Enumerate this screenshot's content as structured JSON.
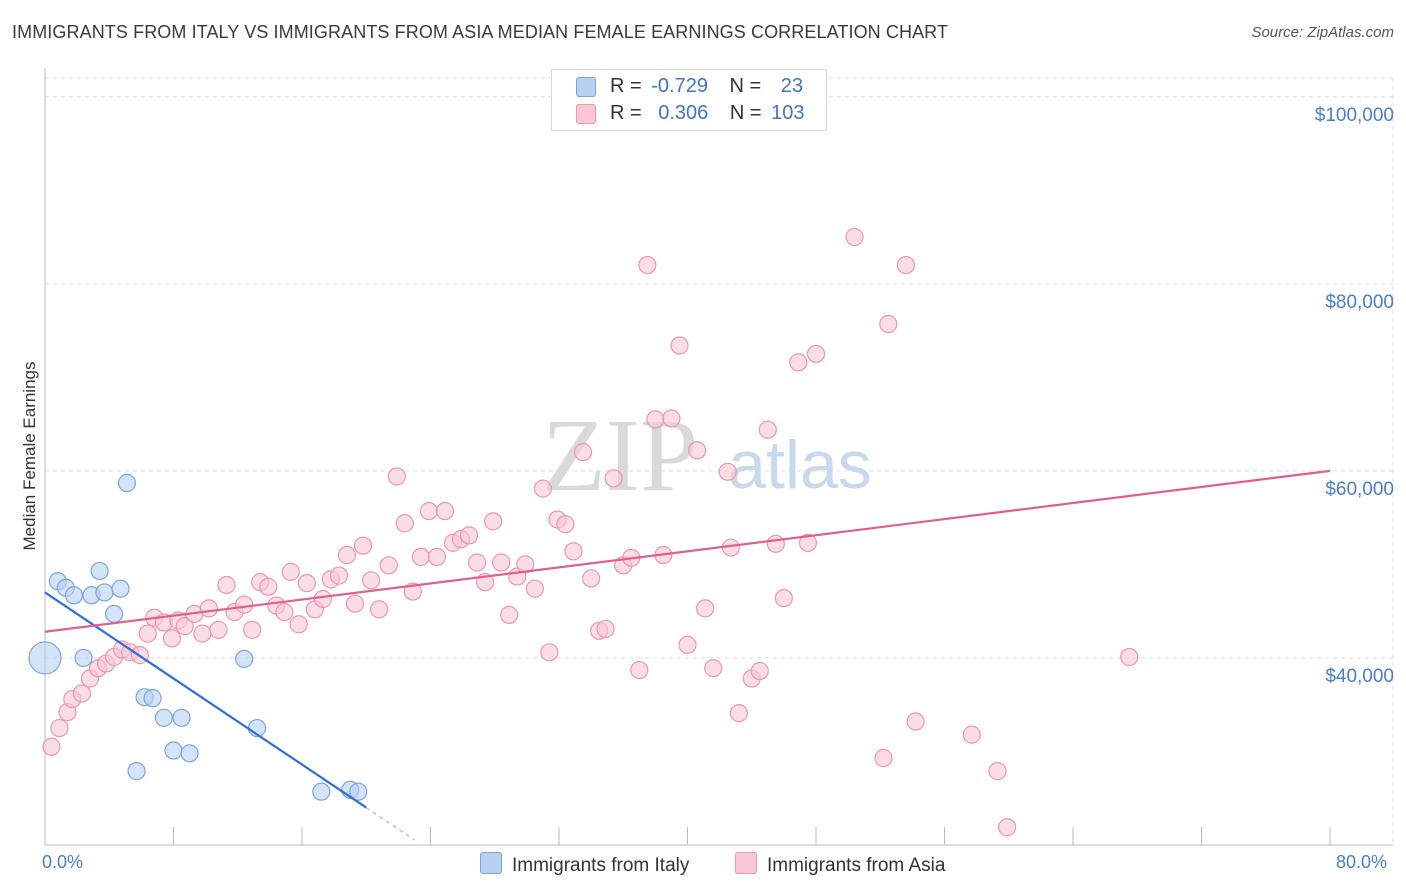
{
  "header": {
    "title": "IMMIGRANTS FROM ITALY VS IMMIGRANTS FROM ASIA MEDIAN FEMALE EARNINGS CORRELATION CHART",
    "source": "Source: ZipAtlas.com"
  },
  "watermark": {
    "zip": "ZIP",
    "atlas": "atlas"
  },
  "legend": {
    "rows": [
      {
        "r_label": "R =",
        "r_value": "-0.729",
        "n_label": "N =",
        "n_value": "23"
      },
      {
        "r_label": "R =",
        "r_value": "0.306",
        "n_label": "N =",
        "n_value": "103"
      }
    ]
  },
  "colors": {
    "italy_fill": "#b8d0f2",
    "italy_stroke": "#7aa5dc",
    "italy_line": "#2f6fd0",
    "asia_fill": "#f9c6d4",
    "asia_stroke": "#ec96b0",
    "asia_line": "#e0608c",
    "tick_text": "#4a7ec7",
    "grid": "#dcdcdc"
  },
  "chart_data": {
    "type": "scatter",
    "title": "IMMIGRANTS FROM ITALY VS IMMIGRANTS FROM ASIA MEDIAN FEMALE EARNINGS CORRELATION CHART",
    "xlabel": "",
    "ylabel": "Median Female Earnings",
    "xlim": [
      0,
      80
    ],
    "ylim": [
      20000,
      102000
    ],
    "x_tick_labels": [
      "0.0%",
      "80.0%"
    ],
    "y_ticks": [
      40000,
      60000,
      80000,
      100000
    ],
    "y_tick_labels": [
      "$40,000",
      "$60,000",
      "$80,000",
      "$100,000"
    ],
    "grid": true,
    "series": [
      {
        "name": "Immigrants from Italy",
        "r": -0.729,
        "n": 23,
        "trend": {
          "x0": 0,
          "y0": 47000,
          "x1": 20,
          "y1": 24000,
          "dashed_to_x": 23
        },
        "points": [
          {
            "x": 0.0,
            "y": 40000,
            "big": true
          },
          {
            "x": 0.8,
            "y": 48200
          },
          {
            "x": 1.3,
            "y": 47500
          },
          {
            "x": 1.8,
            "y": 46700
          },
          {
            "x": 2.9,
            "y": 46700
          },
          {
            "x": 3.4,
            "y": 49300
          },
          {
            "x": 3.7,
            "y": 47000
          },
          {
            "x": 4.3,
            "y": 44700
          },
          {
            "x": 4.7,
            "y": 47400
          },
          {
            "x": 5.1,
            "y": 58700
          },
          {
            "x": 2.4,
            "y": 40000
          },
          {
            "x": 6.2,
            "y": 35800
          },
          {
            "x": 6.7,
            "y": 35700
          },
          {
            "x": 7.4,
            "y": 33600
          },
          {
            "x": 8.5,
            "y": 33600
          },
          {
            "x": 8.0,
            "y": 30100
          },
          {
            "x": 9.0,
            "y": 29800
          },
          {
            "x": 5.7,
            "y": 27900
          },
          {
            "x": 12.4,
            "y": 39900
          },
          {
            "x": 13.2,
            "y": 32500
          },
          {
            "x": 17.2,
            "y": 25700
          },
          {
            "x": 19.0,
            "y": 25900
          },
          {
            "x": 19.5,
            "y": 25700
          }
        ]
      },
      {
        "name": "Immigrants from Asia",
        "r": 0.306,
        "n": 103,
        "trend": {
          "x0": 0,
          "y0": 42800,
          "x1": 80,
          "y1": 60000
        },
        "points": [
          {
            "x": 0.4,
            "y": 30500
          },
          {
            "x": 0.9,
            "y": 32500
          },
          {
            "x": 1.4,
            "y": 34200
          },
          {
            "x": 1.7,
            "y": 35600
          },
          {
            "x": 2.3,
            "y": 36200
          },
          {
            "x": 2.8,
            "y": 37800
          },
          {
            "x": 3.3,
            "y": 38900
          },
          {
            "x": 3.8,
            "y": 39400
          },
          {
            "x": 4.3,
            "y": 40100
          },
          {
            "x": 4.8,
            "y": 40900
          },
          {
            "x": 5.3,
            "y": 40600
          },
          {
            "x": 5.9,
            "y": 40300
          },
          {
            "x": 6.4,
            "y": 42600
          },
          {
            "x": 6.8,
            "y": 44300
          },
          {
            "x": 7.4,
            "y": 43800
          },
          {
            "x": 7.9,
            "y": 42100
          },
          {
            "x": 8.3,
            "y": 44000
          },
          {
            "x": 8.7,
            "y": 43400
          },
          {
            "x": 9.3,
            "y": 44700
          },
          {
            "x": 9.8,
            "y": 42600
          },
          {
            "x": 10.2,
            "y": 45300
          },
          {
            "x": 10.8,
            "y": 43000
          },
          {
            "x": 11.3,
            "y": 47800
          },
          {
            "x": 11.8,
            "y": 44900
          },
          {
            "x": 12.4,
            "y": 45700
          },
          {
            "x": 12.9,
            "y": 43000
          },
          {
            "x": 13.4,
            "y": 48100
          },
          {
            "x": 13.9,
            "y": 47600
          },
          {
            "x": 14.4,
            "y": 45600
          },
          {
            "x": 14.9,
            "y": 44900
          },
          {
            "x": 15.3,
            "y": 49200
          },
          {
            "x": 15.8,
            "y": 43600
          },
          {
            "x": 16.3,
            "y": 48000
          },
          {
            "x": 16.8,
            "y": 45200
          },
          {
            "x": 17.3,
            "y": 46300
          },
          {
            "x": 17.8,
            "y": 48400
          },
          {
            "x": 18.3,
            "y": 48800
          },
          {
            "x": 18.8,
            "y": 51000
          },
          {
            "x": 19.3,
            "y": 45800
          },
          {
            "x": 19.8,
            "y": 52000
          },
          {
            "x": 20.3,
            "y": 48300
          },
          {
            "x": 20.8,
            "y": 45200
          },
          {
            "x": 21.4,
            "y": 49900
          },
          {
            "x": 21.9,
            "y": 59400
          },
          {
            "x": 22.4,
            "y": 54400
          },
          {
            "x": 22.9,
            "y": 47100
          },
          {
            "x": 23.4,
            "y": 50800
          },
          {
            "x": 23.9,
            "y": 55700
          },
          {
            "x": 24.4,
            "y": 50800
          },
          {
            "x": 24.9,
            "y": 55700
          },
          {
            "x": 25.4,
            "y": 52300
          },
          {
            "x": 25.9,
            "y": 52700
          },
          {
            "x": 26.4,
            "y": 53100
          },
          {
            "x": 26.9,
            "y": 50200
          },
          {
            "x": 27.4,
            "y": 48100
          },
          {
            "x": 27.9,
            "y": 54600
          },
          {
            "x": 28.4,
            "y": 50200
          },
          {
            "x": 28.9,
            "y": 44600
          },
          {
            "x": 29.4,
            "y": 48700
          },
          {
            "x": 29.9,
            "y": 50000
          },
          {
            "x": 30.5,
            "y": 47400
          },
          {
            "x": 31.0,
            "y": 58100
          },
          {
            "x": 31.4,
            "y": 40600
          },
          {
            "x": 31.9,
            "y": 54800
          },
          {
            "x": 32.4,
            "y": 54300
          },
          {
            "x": 32.9,
            "y": 51400
          },
          {
            "x": 33.5,
            "y": 62000
          },
          {
            "x": 34.0,
            "y": 48500
          },
          {
            "x": 34.5,
            "y": 42900
          },
          {
            "x": 34.9,
            "y": 43100
          },
          {
            "x": 35.4,
            "y": 59200
          },
          {
            "x": 36.0,
            "y": 49900
          },
          {
            "x": 36.5,
            "y": 50700
          },
          {
            "x": 37.0,
            "y": 38700
          },
          {
            "x": 37.5,
            "y": 82000
          },
          {
            "x": 38.0,
            "y": 65500
          },
          {
            "x": 38.5,
            "y": 51000
          },
          {
            "x": 39.0,
            "y": 65600
          },
          {
            "x": 39.5,
            "y": 73400
          },
          {
            "x": 40.0,
            "y": 41400
          },
          {
            "x": 40.6,
            "y": 62200
          },
          {
            "x": 41.1,
            "y": 45300
          },
          {
            "x": 41.6,
            "y": 38900
          },
          {
            "x": 42.5,
            "y": 59900
          },
          {
            "x": 42.7,
            "y": 51800
          },
          {
            "x": 43.2,
            "y": 34100
          },
          {
            "x": 44.0,
            "y": 37800
          },
          {
            "x": 44.5,
            "y": 38600
          },
          {
            "x": 45.0,
            "y": 64400
          },
          {
            "x": 45.5,
            "y": 52200
          },
          {
            "x": 46.0,
            "y": 46400
          },
          {
            "x": 46.9,
            "y": 71600
          },
          {
            "x": 47.5,
            "y": 52300
          },
          {
            "x": 48.0,
            "y": 72500
          },
          {
            "x": 50.4,
            "y": 85000
          },
          {
            "x": 52.2,
            "y": 29300
          },
          {
            "x": 52.5,
            "y": 75700
          },
          {
            "x": 53.6,
            "y": 82000
          },
          {
            "x": 54.2,
            "y": 33200
          },
          {
            "x": 57.7,
            "y": 31800
          },
          {
            "x": 59.3,
            "y": 27900
          },
          {
            "x": 59.9,
            "y": 21900
          },
          {
            "x": 67.5,
            "y": 40100
          }
        ]
      }
    ]
  }
}
